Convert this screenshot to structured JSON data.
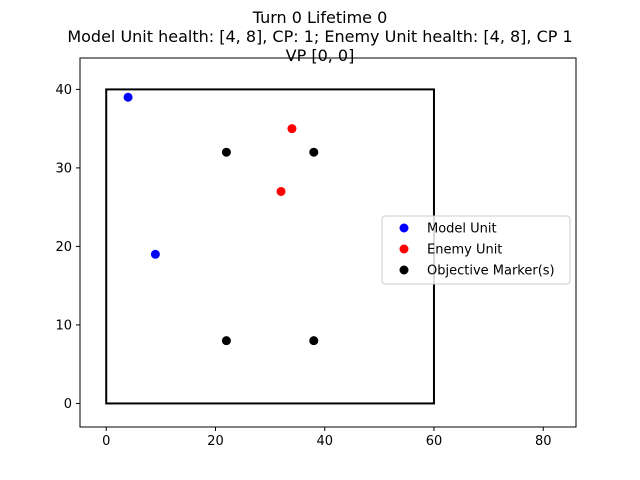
{
  "chart_data": {
    "type": "scatter",
    "title_lines": [
      "Turn 0 Lifetime 0",
      "Model Unit health: [4, 8], CP: 1; Enemy Unit health: [4, 8], CP 1",
      "VP [0, 0]"
    ],
    "xlabel": "",
    "ylabel": "",
    "xlim": [
      -4.8,
      86
    ],
    "ylim": [
      -3,
      44
    ],
    "xticks": [
      0,
      20,
      40,
      60,
      80
    ],
    "yticks": [
      0,
      10,
      20,
      30,
      40
    ],
    "grid": false,
    "legend_position": "center-right",
    "board_rectangle": {
      "x_min": 0,
      "x_max": 60,
      "y_min": 0,
      "y_max": 40,
      "color": "#000000"
    },
    "series": [
      {
        "name": "Model Unit",
        "color": "#0000ff",
        "points": [
          [
            4,
            39
          ],
          [
            9,
            19
          ]
        ]
      },
      {
        "name": "Enemy Unit",
        "color": "#ff0000",
        "points": [
          [
            34,
            35
          ],
          [
            32,
            27
          ]
        ]
      },
      {
        "name": "Objective Marker(s)",
        "color": "#000000",
        "points": [
          [
            22,
            32
          ],
          [
            38,
            32
          ],
          [
            22,
            8
          ],
          [
            38,
            8
          ]
        ]
      }
    ]
  }
}
